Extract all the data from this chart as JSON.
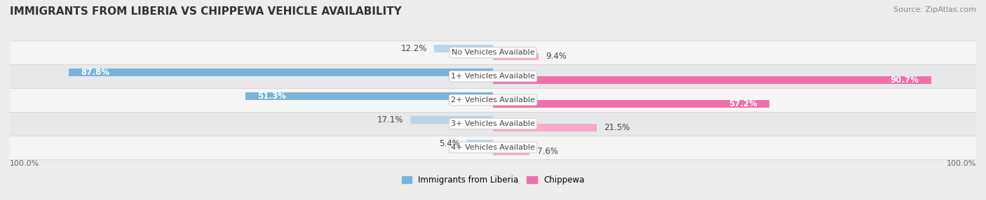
{
  "title": "IMMIGRANTS FROM LIBERIA VS CHIPPEWA VEHICLE AVAILABILITY",
  "source": "Source: ZipAtlas.com",
  "categories": [
    "No Vehicles Available",
    "1+ Vehicles Available",
    "2+ Vehicles Available",
    "3+ Vehicles Available",
    "4+ Vehicles Available"
  ],
  "liberia_values": [
    12.2,
    87.8,
    51.3,
    17.1,
    5.4
  ],
  "chippewa_values": [
    9.4,
    90.7,
    57.2,
    21.5,
    7.6
  ],
  "liberia_color": "#7ab3d9",
  "liberia_color_light": "#b8d5ea",
  "chippewa_color": "#f06faa",
  "chippewa_color_light": "#f7aacb",
  "bg_color": "#ededee",
  "row_bg_even": "#f5f5f6",
  "row_bg_odd": "#e8e8ea",
  "max_value": 100.0,
  "legend_liberia": "Immigrants from Liberia",
  "legend_chippewa": "Chippewa",
  "title_fontsize": 11,
  "label_fontsize": 8.5,
  "cat_fontsize": 8,
  "source_fontsize": 8
}
